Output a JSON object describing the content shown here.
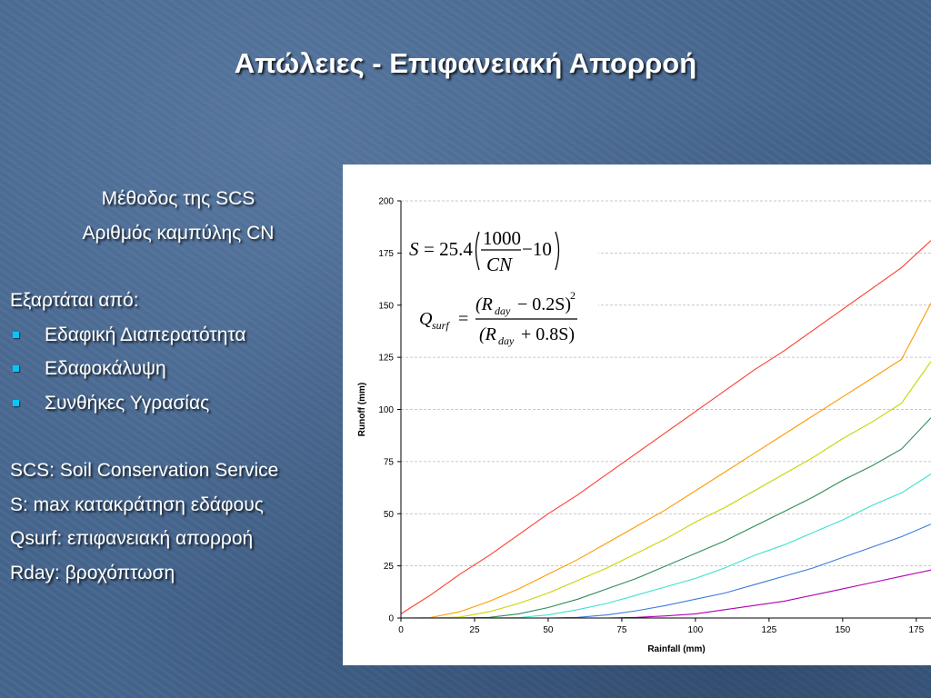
{
  "slide": {
    "title": "Απώλειες - Επιφανειακή Απορροή",
    "method_line1": "Μέθοδος της SCS",
    "method_line2": "Αριθμός καμπύλης CN",
    "depends_label": "Εξαρτάται από:",
    "bullets": [
      "Εδαφική Διαπερατότητα",
      "Εδαφοκάλυψη",
      "Συνθήκες Υγρασίας"
    ],
    "definitions": [
      "SCS: Soil Conservation Service",
      "S: max κατακράτηση εδάφους",
      "Qsurf: επιφανειακή απορροή",
      "Rday: βροχόπτωση"
    ],
    "bullet_color": "#00c8ff"
  },
  "formulas": {
    "s_lhs": "S",
    "s_eq": "= 25.4",
    "s_num": "1000",
    "s_den": "CN",
    "s_tail": "−10",
    "q_lhs": "Q",
    "q_lhs_sub": "surf",
    "q_eq": "=",
    "q_num": "(R",
    "q_num_sub": "day",
    "q_num_tail": "− 0.2S)",
    "q_num_sup": "2",
    "q_den": "(R",
    "q_den_sub": "day",
    "q_den_tail": "+ 0.8S)"
  },
  "chart_data": {
    "type": "line",
    "xlabel": "Rainfall (mm)",
    "ylabel": "Runoff (mm)",
    "xlim": [
      0,
      180
    ],
    "ylim": [
      0,
      200
    ],
    "xticks": [
      0,
      25,
      50,
      75,
      100,
      125,
      150,
      175
    ],
    "yticks": [
      0,
      25,
      50,
      75,
      100,
      125,
      150,
      175,
      200
    ],
    "grid": "horizontal dashed",
    "x": [
      0,
      10,
      20,
      30,
      40,
      50,
      60,
      70,
      80,
      90,
      100,
      110,
      120,
      130,
      140,
      150,
      160,
      170,
      180
    ],
    "series": [
      {
        "color": "#ff3b30",
        "values": [
          2,
          11,
          21,
          30,
          40,
          50,
          59,
          69,
          79,
          89,
          99,
          109,
          119,
          128,
          138,
          148,
          158,
          168,
          181
        ]
      },
      {
        "color": "#ff9a00",
        "values": [
          0,
          0.2,
          3,
          8,
          14,
          21,
          28,
          36,
          44,
          52,
          61,
          70,
          79,
          88,
          97,
          106,
          115,
          124,
          151
        ]
      },
      {
        "color": "#c8d400",
        "values": [
          0,
          0,
          0.5,
          3,
          7,
          12,
          18,
          24,
          31,
          38,
          46,
          53,
          61,
          69,
          77,
          86,
          94,
          103,
          123
        ]
      },
      {
        "color": "#2e8b57",
        "values": [
          0,
          0,
          0,
          0.3,
          2,
          5,
          9,
          14,
          19,
          25,
          31,
          37,
          44,
          51,
          58,
          66,
          73,
          81,
          96
        ]
      },
      {
        "color": "#3de0d0",
        "values": [
          0,
          0,
          0,
          0,
          0.2,
          1.5,
          4,
          7,
          11,
          15,
          19,
          24,
          30,
          35,
          41,
          47,
          54,
          60,
          69
        ]
      },
      {
        "color": "#3a7bdc",
        "values": [
          0,
          0,
          0,
          0,
          0,
          0,
          0.3,
          1.5,
          3.5,
          6,
          9,
          12,
          16,
          20,
          24,
          29,
          34,
          39,
          45
        ]
      },
      {
        "color": "#b000b0",
        "values": [
          0,
          0,
          0,
          0,
          0,
          0,
          0,
          0,
          0.3,
          1,
          2,
          4,
          6,
          8,
          11,
          14,
          17,
          20,
          23
        ]
      }
    ]
  }
}
